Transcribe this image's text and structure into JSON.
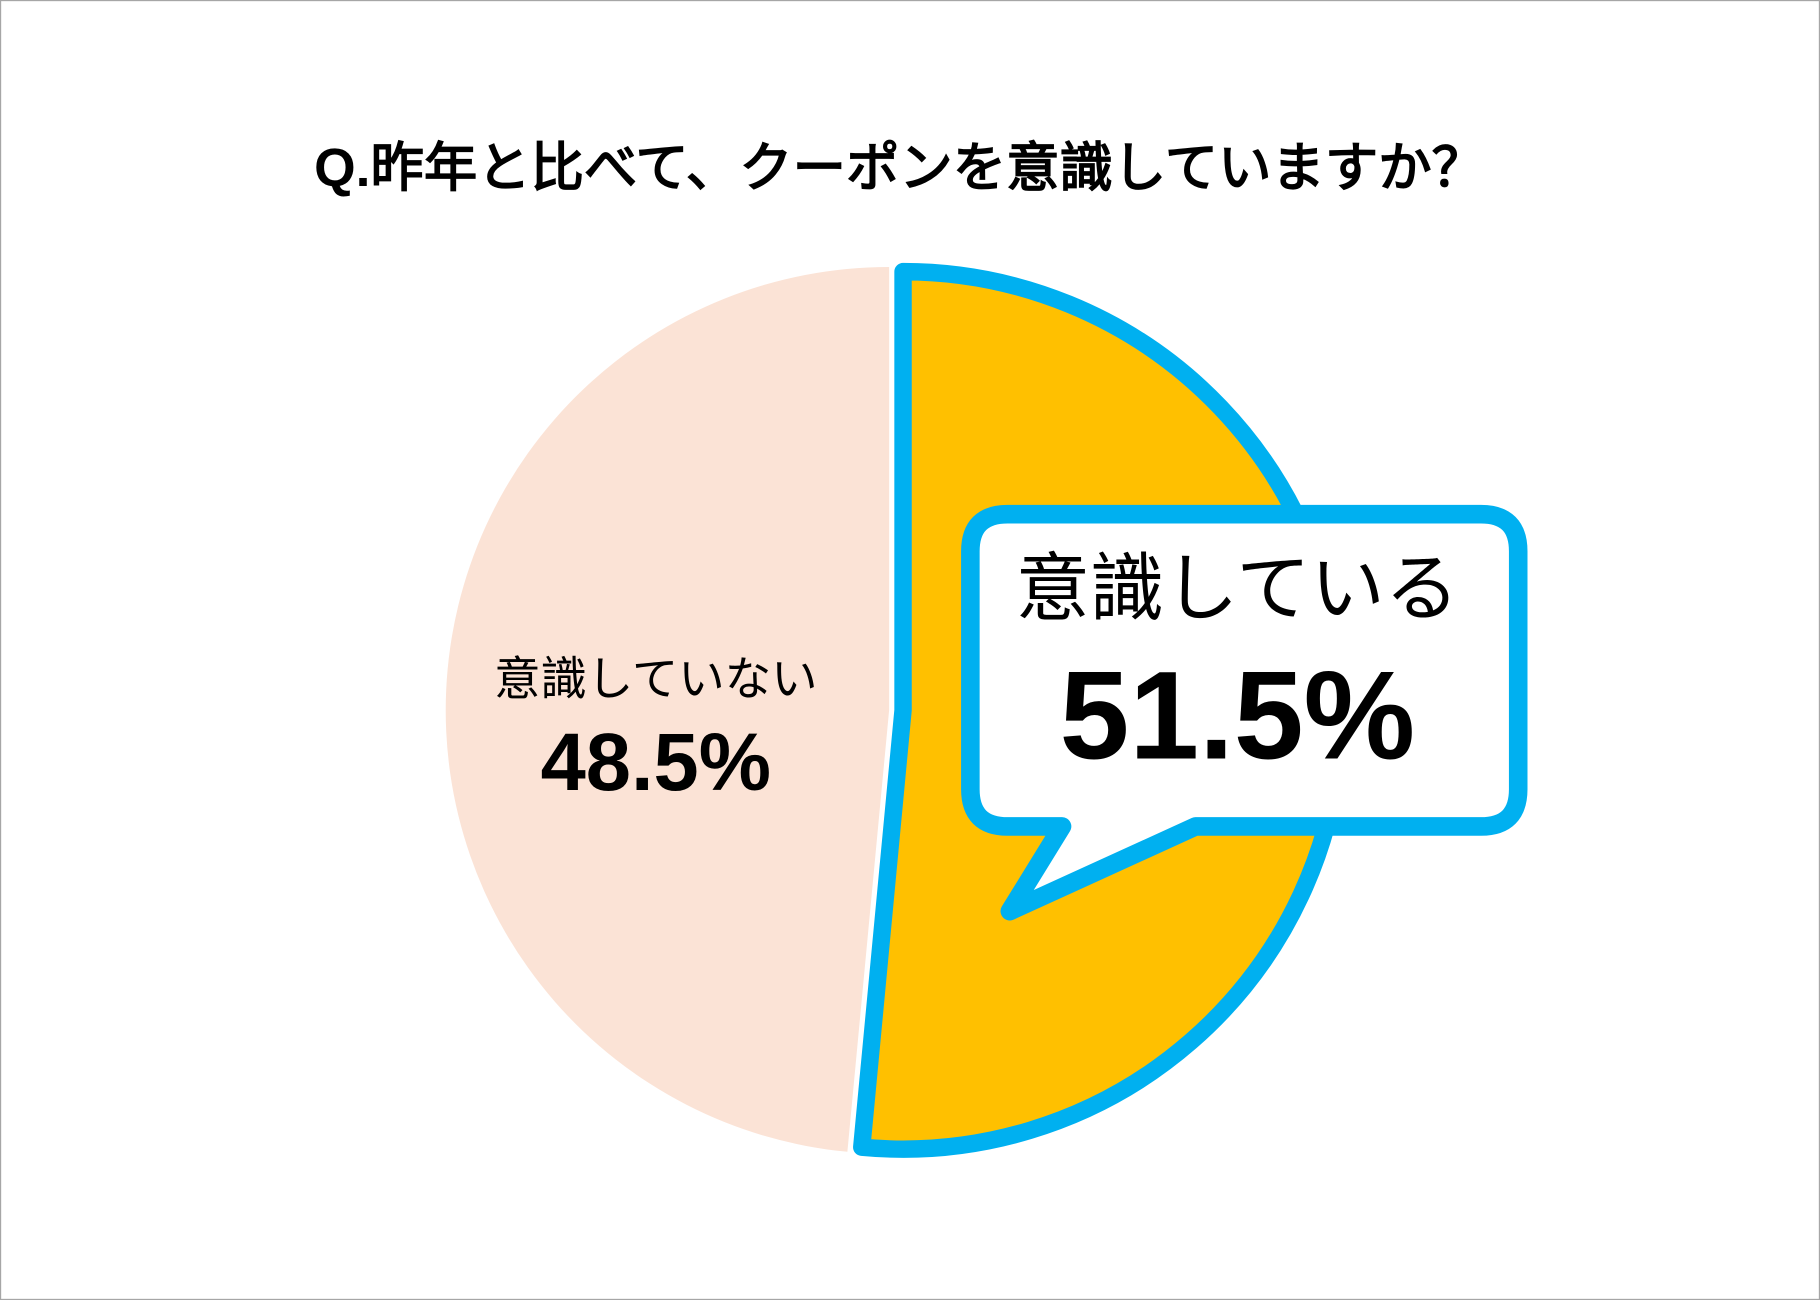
{
  "chart_data": {
    "type": "pie",
    "title": "Q.昨年と比べて、クーポンを意識していますか？",
    "categories": [
      "意識している",
      "意識していない"
    ],
    "values": [
      51.5,
      48.5
    ],
    "value_labels": [
      "51.5%",
      "48.5%"
    ],
    "colors": [
      "#FFC000",
      "#FBE3D6"
    ],
    "highlight_color": "#00B0F0"
  }
}
